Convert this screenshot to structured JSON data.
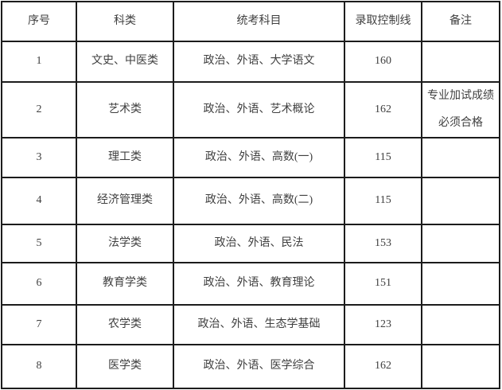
{
  "table": {
    "headers": {
      "no": "序号",
      "category": "科类",
      "subjects": "统考科目",
      "cutoff": "录取控制线",
      "remark": "备注"
    },
    "rows": [
      {
        "no": "1",
        "category": "文史、中医类",
        "subjects": "政治、外语、大学语文",
        "cutoff": "160",
        "remark": ""
      },
      {
        "no": "2",
        "category": "艺术类",
        "subjects": "政治、外语、艺术概论",
        "cutoff": "162",
        "remark_lines": [
          "专业加试成绩",
          "必须合格"
        ]
      },
      {
        "no": "3",
        "category": "理工类",
        "subjects": "政治、外语、高数(一)",
        "cutoff": "115",
        "remark": ""
      },
      {
        "no": "4",
        "category": "经济管理类",
        "subjects": "政治、外语、高数(二)",
        "cutoff": "115",
        "remark": ""
      },
      {
        "no": "5",
        "category": "法学类",
        "subjects": "政治、外语、民法",
        "cutoff": "153",
        "remark": ""
      },
      {
        "no": "6",
        "category": "教育学类",
        "subjects": "政治、外语、教育理论",
        "cutoff": "151",
        "remark": ""
      },
      {
        "no": "7",
        "category": "农学类",
        "subjects": "政治、外语、生态学基础",
        "cutoff": "123",
        "remark": ""
      },
      {
        "no": "8",
        "category": "医学类",
        "subjects": "政治、外语、医学综合",
        "cutoff": "162",
        "remark": ""
      }
    ]
  },
  "colors": {
    "border": "#1c1c1c",
    "text": "#404040",
    "background": "#ffffff"
  }
}
